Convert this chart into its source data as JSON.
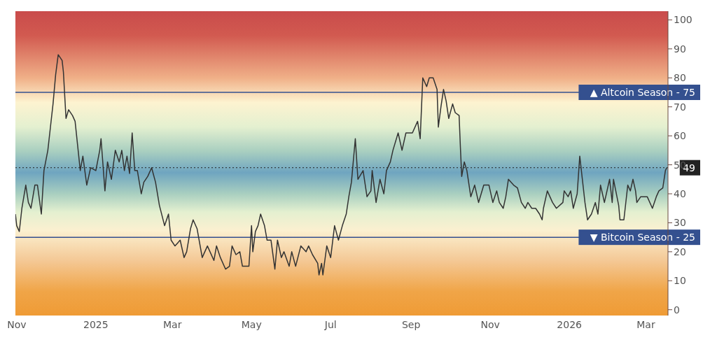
{
  "chart_data": {
    "type": "line",
    "x": [
      "2024-10-31",
      "2024-11-01",
      "2024-11-03",
      "2024-11-05",
      "2024-11-08",
      "2024-11-10",
      "2024-11-12",
      "2024-11-15",
      "2024-11-17",
      "2024-11-20",
      "2024-11-22",
      "2024-11-25",
      "2024-11-27",
      "2024-11-29",
      "2024-12-01",
      "2024-12-03",
      "2024-12-06",
      "2024-12-07",
      "2024-12-09",
      "2024-12-11",
      "2024-12-14",
      "2024-12-16",
      "2024-12-20",
      "2024-12-22",
      "2024-12-25",
      "2024-12-28",
      "2025-01-01",
      "2025-01-04",
      "2025-01-05",
      "2025-01-08",
      "2025-01-10",
      "2025-01-13",
      "2025-01-16",
      "2025-01-19",
      "2025-01-21",
      "2025-01-23",
      "2025-01-25",
      "2025-01-27",
      "2025-01-29",
      "2025-01-31",
      "2025-02-02",
      "2025-02-05",
      "2025-02-07",
      "2025-02-10",
      "2025-02-13",
      "2025-02-16",
      "2025-02-19",
      "2025-02-23",
      "2025-02-26",
      "2025-02-28",
      "2025-03-03",
      "2025-03-07",
      "2025-03-10",
      "2025-03-12",
      "2025-03-15",
      "2025-03-17",
      "2025-03-20",
      "2025-03-24",
      "2025-03-28",
      "2025-04-02",
      "2025-04-04",
      "2025-04-07",
      "2025-04-11",
      "2025-04-14",
      "2025-04-16",
      "2025-04-19",
      "2025-04-22",
      "2025-04-24",
      "2025-04-29",
      "2025-05-01",
      "2025-05-02",
      "2025-05-04",
      "2025-05-06",
      "2025-05-08",
      "2025-05-11",
      "2025-05-13",
      "2025-05-16",
      "2025-05-19",
      "2025-05-21",
      "2025-05-24",
      "2025-05-26",
      "2025-05-30",
      "2025-06-01",
      "2025-06-04",
      "2025-06-08",
      "2025-06-12",
      "2025-06-14",
      "2025-06-17",
      "2025-06-21",
      "2025-06-22",
      "2025-06-24",
      "2025-06-25",
      "2025-06-28",
      "2025-07-01",
      "2025-07-04",
      "2025-07-07",
      "2025-07-10",
      "2025-07-13",
      "2025-07-15",
      "2025-07-17",
      "2025-07-20",
      "2025-07-22",
      "2025-07-26",
      "2025-07-29",
      "2025-08-01",
      "2025-08-02",
      "2025-08-05",
      "2025-08-08",
      "2025-08-11",
      "2025-08-13",
      "2025-08-16",
      "2025-08-18",
      "2025-08-22",
      "2025-08-25",
      "2025-08-28",
      "2025-09-02",
      "2025-09-06",
      "2025-09-08",
      "2025-09-10",
      "2025-09-13",
      "2025-09-15",
      "2025-09-18",
      "2025-09-21",
      "2025-09-22",
      "2025-09-24",
      "2025-09-26",
      "2025-09-28",
      "2025-09-30",
      "2025-10-03",
      "2025-10-05",
      "2025-10-08",
      "2025-10-09",
      "2025-10-10",
      "2025-10-12",
      "2025-10-14",
      "2025-10-17",
      "2025-10-20",
      "2025-10-23",
      "2025-10-27",
      "2025-10-31",
      "2025-11-03",
      "2025-11-06",
      "2025-11-08",
      "2025-11-11",
      "2025-11-13",
      "2025-11-15",
      "2025-11-19",
      "2025-11-22",
      "2025-11-25",
      "2025-11-28",
      "2025-11-30",
      "2025-12-03",
      "2025-12-06",
      "2025-12-09",
      "2025-12-11",
      "2025-12-12",
      "2025-12-15",
      "2025-12-19",
      "2025-12-22",
      "2025-12-27",
      "2025-12-28",
      "2025-12-31",
      "2026-01-02",
      "2026-01-04",
      "2026-01-07",
      "2026-01-09",
      "2026-01-11",
      "2026-01-13",
      "2026-01-15",
      "2026-01-18",
      "2026-01-21",
      "2026-01-23",
      "2026-01-25",
      "2026-01-28",
      "2026-02-01",
      "2026-02-03",
      "2026-02-04",
      "2026-02-08",
      "2026-02-09",
      "2026-02-12",
      "2026-02-13",
      "2026-02-15",
      "2026-02-17",
      "2026-02-19",
      "2026-02-21",
      "2026-02-22",
      "2026-02-25",
      "2026-03-02",
      "2026-03-06",
      "2026-03-09",
      "2026-03-11",
      "2026-03-14",
      "2026-03-16",
      "2026-03-17"
    ],
    "series": [
      {
        "color": "#333333",
        "values": [
          33,
          29,
          27,
          35,
          43,
          37,
          35,
          43,
          43,
          33,
          48,
          55,
          63,
          71,
          81,
          88,
          86,
          82,
          66,
          69,
          67,
          65,
          48,
          53,
          43,
          49,
          48,
          55,
          59,
          41,
          51,
          45,
          55,
          51,
          55,
          48,
          53,
          47,
          61,
          48,
          48,
          40,
          44,
          46,
          49,
          44,
          36,
          29,
          33,
          24,
          22,
          24,
          18,
          20,
          28,
          31,
          28,
          18,
          22,
          17,
          22,
          18,
          14,
          15,
          22,
          19,
          20,
          15,
          15,
          29,
          20,
          27,
          29,
          33,
          29,
          24,
          24,
          14,
          24,
          18,
          20,
          15,
          20,
          15,
          22,
          20,
          22,
          19,
          16,
          12,
          16,
          12,
          22,
          18,
          29,
          24,
          29,
          33,
          39,
          44,
          59,
          45,
          48,
          39,
          41,
          48,
          37,
          45,
          40,
          48,
          51,
          55,
          61,
          55,
          61,
          61,
          65,
          59,
          80,
          77,
          80,
          80,
          76,
          63,
          70,
          76,
          72,
          66,
          71,
          68,
          67,
          56,
          46,
          51,
          48,
          39,
          43,
          37,
          43,
          43,
          37,
          41,
          37,
          35,
          39,
          45,
          43,
          42,
          37,
          35,
          37,
          35,
          35,
          33,
          31,
          35,
          41,
          37,
          35,
          37,
          41,
          39,
          41,
          35,
          40,
          53,
          45,
          37,
          31,
          33,
          37,
          33,
          43,
          37,
          45,
          37,
          45,
          36,
          31,
          31,
          35,
          43,
          41,
          45,
          41,
          37,
          39,
          39,
          35,
          39,
          41,
          42,
          48,
          49
        ]
      }
    ],
    "xlim": [
      "2024-10-31",
      "2026-03-18"
    ],
    "xticks": [
      {
        "value": "2024-11-01",
        "label": "Nov"
      },
      {
        "value": "2025-01-01",
        "label": "2025"
      },
      {
        "value": "2025-03-01",
        "label": "Mar"
      },
      {
        "value": "2025-05-01",
        "label": "May"
      },
      {
        "value": "2025-07-01",
        "label": "Jul"
      },
      {
        "value": "2025-09-01",
        "label": "Sep"
      },
      {
        "value": "2025-11-01",
        "label": "Nov"
      },
      {
        "value": "2026-01-01",
        "label": "2026"
      },
      {
        "value": "2026-03-01",
        "label": "Mar"
      }
    ],
    "ylim": [
      -2,
      103
    ],
    "yticks": [
      0,
      10,
      20,
      30,
      40,
      50,
      60,
      70,
      80,
      90,
      100
    ],
    "ref_lines": [
      {
        "axis": "y",
        "value": 75,
        "label": "▲ Altcoin Season - 75",
        "color": "#34508f",
        "line_style": "solid"
      },
      {
        "axis": "y",
        "value": 25,
        "label": "▼ Bitcoin Season - 25",
        "color": "#34508f",
        "line_style": "solid"
      },
      {
        "axis": "y",
        "value": 49,
        "label": "49",
        "color": "#222222",
        "line_style": "dotted"
      }
    ],
    "grid": false,
    "legend": false,
    "marker": "none",
    "line_style": "solid"
  }
}
